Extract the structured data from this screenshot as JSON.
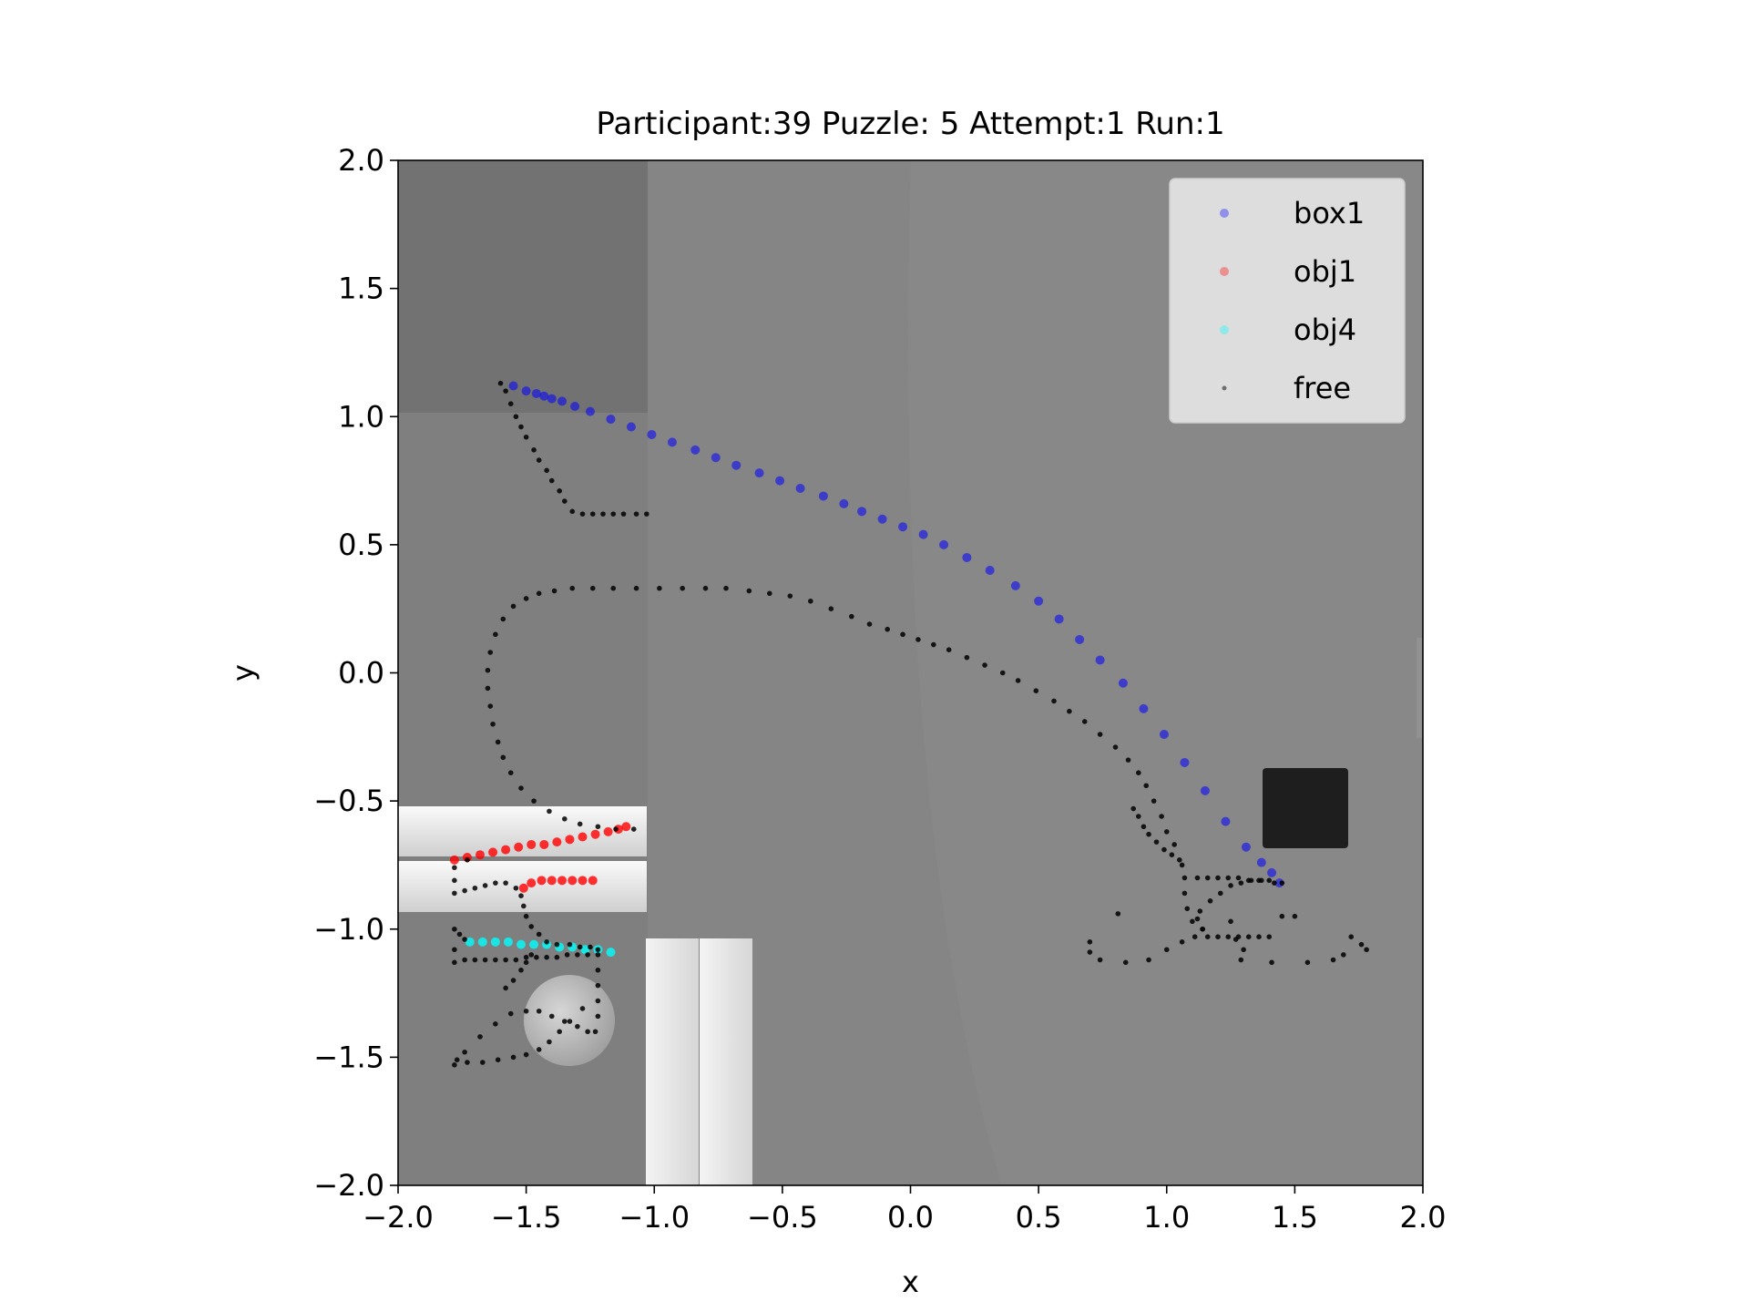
{
  "chart_data": {
    "type": "scatter",
    "title": "Participant:39 Puzzle: 5 Attempt:1 Run:1",
    "xlabel": "x",
    "ylabel": "y",
    "xlim": [
      -2.0,
      2.0
    ],
    "ylim": [
      -2.0,
      2.0
    ],
    "xticks": [
      "−2.0",
      "−1.5",
      "−1.0",
      "−0.5",
      "0.0",
      "0.5",
      "1.0",
      "1.5",
      "2.0"
    ],
    "yticks": [
      "2.0",
      "1.5",
      "1.0",
      "0.5",
      "0.0",
      "−0.5",
      "−1.0",
      "−1.5",
      "−2.0"
    ],
    "xtick_values": [
      -2.0,
      -1.5,
      -1.0,
      -0.5,
      0.0,
      0.5,
      1.0,
      1.5,
      2.0
    ],
    "ytick_values": [
      2.0,
      1.5,
      1.0,
      0.5,
      0.0,
      -0.5,
      -1.0,
      -1.5,
      -2.0
    ],
    "grid": false,
    "legend_position": "top-right",
    "background": "grayscale scene image",
    "series": [
      {
        "name": "box1",
        "color": "#0000ff",
        "points": [
          [
            -1.55,
            1.12
          ],
          [
            -1.5,
            1.1
          ],
          [
            -1.46,
            1.09
          ],
          [
            -1.43,
            1.08
          ],
          [
            -1.4,
            1.07
          ],
          [
            -1.36,
            1.06
          ],
          [
            -1.31,
            1.04
          ],
          [
            -1.25,
            1.02
          ],
          [
            -1.17,
            0.99
          ],
          [
            -1.09,
            0.96
          ],
          [
            -1.01,
            0.93
          ],
          [
            -0.93,
            0.9
          ],
          [
            -0.84,
            0.87
          ],
          [
            -0.76,
            0.84
          ],
          [
            -0.68,
            0.81
          ],
          [
            -0.59,
            0.78
          ],
          [
            -0.51,
            0.75
          ],
          [
            -0.43,
            0.72
          ],
          [
            -0.34,
            0.69
          ],
          [
            -0.26,
            0.66
          ],
          [
            -0.19,
            0.63
          ],
          [
            -0.11,
            0.6
          ],
          [
            -0.03,
            0.57
          ],
          [
            0.05,
            0.54
          ],
          [
            0.13,
            0.5
          ],
          [
            0.22,
            0.45
          ],
          [
            0.31,
            0.4
          ],
          [
            0.41,
            0.34
          ],
          [
            0.5,
            0.28
          ],
          [
            0.58,
            0.21
          ],
          [
            0.66,
            0.13
          ],
          [
            0.74,
            0.05
          ],
          [
            0.83,
            -0.04
          ],
          [
            0.91,
            -0.14
          ],
          [
            0.99,
            -0.24
          ],
          [
            1.07,
            -0.35
          ],
          [
            1.15,
            -0.46
          ],
          [
            1.23,
            -0.58
          ],
          [
            1.31,
            -0.68
          ],
          [
            1.37,
            -0.74
          ],
          [
            1.41,
            -0.78
          ],
          [
            1.44,
            -0.82
          ]
        ]
      },
      {
        "name": "obj1",
        "color": "#ff0000",
        "points": [
          [
            -1.78,
            -0.73
          ],
          [
            -1.73,
            -0.72
          ],
          [
            -1.68,
            -0.71
          ],
          [
            -1.63,
            -0.7
          ],
          [
            -1.58,
            -0.69
          ],
          [
            -1.53,
            -0.68
          ],
          [
            -1.48,
            -0.67
          ],
          [
            -1.43,
            -0.67
          ],
          [
            -1.38,
            -0.66
          ],
          [
            -1.33,
            -0.65
          ],
          [
            -1.28,
            -0.64
          ],
          [
            -1.23,
            -0.63
          ],
          [
            -1.18,
            -0.62
          ],
          [
            -1.14,
            -0.61
          ],
          [
            -1.11,
            -0.6
          ],
          [
            -1.51,
            -0.84
          ],
          [
            -1.48,
            -0.82
          ],
          [
            -1.44,
            -0.81
          ],
          [
            -1.4,
            -0.81
          ],
          [
            -1.36,
            -0.81
          ],
          [
            -1.32,
            -0.81
          ],
          [
            -1.28,
            -0.81
          ],
          [
            -1.24,
            -0.81
          ]
        ]
      },
      {
        "name": "obj4",
        "color": "#00ffff",
        "points": [
          [
            -1.72,
            -1.05
          ],
          [
            -1.67,
            -1.05
          ],
          [
            -1.62,
            -1.05
          ],
          [
            -1.57,
            -1.05
          ],
          [
            -1.52,
            -1.06
          ],
          [
            -1.47,
            -1.06
          ],
          [
            -1.42,
            -1.06
          ],
          [
            -1.37,
            -1.07
          ],
          [
            -1.32,
            -1.07
          ],
          [
            -1.27,
            -1.08
          ],
          [
            -1.22,
            -1.08
          ],
          [
            -1.17,
            -1.09
          ]
        ]
      },
      {
        "name": "free",
        "color": "#000000",
        "points": [
          [
            -1.6,
            1.13
          ],
          [
            -1.58,
            1.1
          ],
          [
            -1.56,
            1.05
          ],
          [
            -1.54,
            1.0
          ],
          [
            -1.52,
            0.96
          ],
          [
            -1.5,
            0.92
          ],
          [
            -1.47,
            0.87
          ],
          [
            -1.45,
            0.83
          ],
          [
            -1.42,
            0.79
          ],
          [
            -1.4,
            0.75
          ],
          [
            -1.37,
            0.71
          ],
          [
            -1.35,
            0.67
          ],
          [
            -1.32,
            0.63
          ],
          [
            -1.28,
            0.62
          ],
          [
            -1.24,
            0.62
          ],
          [
            -1.2,
            0.62
          ],
          [
            -1.16,
            0.62
          ],
          [
            -1.12,
            0.62
          ],
          [
            -1.07,
            0.62
          ],
          [
            -1.03,
            0.62
          ],
          [
            -1.08,
            -0.61
          ],
          [
            -1.15,
            -0.61
          ],
          [
            -1.22,
            -0.6
          ],
          [
            -1.29,
            -0.59
          ],
          [
            -1.35,
            -0.57
          ],
          [
            -1.41,
            -0.54
          ],
          [
            -1.47,
            -0.5
          ],
          [
            -1.52,
            -0.45
          ],
          [
            -1.56,
            -0.39
          ],
          [
            -1.59,
            -0.33
          ],
          [
            -1.61,
            -0.27
          ],
          [
            -1.63,
            -0.2
          ],
          [
            -1.64,
            -0.13
          ],
          [
            -1.65,
            -0.06
          ],
          [
            -1.65,
            0.01
          ],
          [
            -1.64,
            0.08
          ],
          [
            -1.62,
            0.15
          ],
          [
            -1.59,
            0.21
          ],
          [
            -1.55,
            0.26
          ],
          [
            -1.5,
            0.29
          ],
          [
            -1.45,
            0.31
          ],
          [
            -1.39,
            0.32
          ],
          [
            -1.32,
            0.33
          ],
          [
            -1.24,
            0.33
          ],
          [
            -1.16,
            0.33
          ],
          [
            -1.07,
            0.33
          ],
          [
            -0.98,
            0.33
          ],
          [
            -0.89,
            0.33
          ],
          [
            -0.8,
            0.33
          ],
          [
            -0.72,
            0.33
          ],
          [
            -0.63,
            0.32
          ],
          [
            -0.55,
            0.31
          ],
          [
            -0.47,
            0.3
          ],
          [
            -0.39,
            0.28
          ],
          [
            -0.31,
            0.25
          ],
          [
            -0.23,
            0.22
          ],
          [
            -0.16,
            0.19
          ],
          [
            -0.09,
            0.17
          ],
          [
            -0.03,
            0.15
          ],
          [
            0.03,
            0.13
          ],
          [
            0.09,
            0.11
          ],
          [
            0.15,
            0.09
          ],
          [
            0.22,
            0.06
          ],
          [
            0.29,
            0.03
          ],
          [
            0.36,
            0.0
          ],
          [
            0.42,
            -0.03
          ],
          [
            0.49,
            -0.07
          ],
          [
            0.56,
            -0.11
          ],
          [
            0.62,
            -0.15
          ],
          [
            0.68,
            -0.19
          ],
          [
            0.74,
            -0.24
          ],
          [
            0.8,
            -0.29
          ],
          [
            0.85,
            -0.34
          ],
          [
            0.89,
            -0.39
          ],
          [
            0.92,
            -0.44
          ],
          [
            0.95,
            -0.5
          ],
          [
            0.98,
            -0.56
          ],
          [
            1.0,
            -0.62
          ],
          [
            1.03,
            -0.67
          ],
          [
            1.05,
            -0.73
          ],
          [
            0.87,
            -0.53
          ],
          [
            0.89,
            -0.56
          ],
          [
            0.91,
            -0.6
          ],
          [
            0.93,
            -0.63
          ],
          [
            0.96,
            -0.66
          ],
          [
            0.99,
            -0.69
          ],
          [
            1.02,
            -0.71
          ],
          [
            1.06,
            -0.75
          ],
          [
            1.07,
            -0.8
          ],
          [
            1.07,
            -0.86
          ],
          [
            1.08,
            -0.92
          ],
          [
            1.1,
            -0.97
          ],
          [
            1.13,
            -0.93
          ],
          [
            1.17,
            -0.89
          ],
          [
            1.21,
            -0.86
          ],
          [
            1.25,
            -0.83
          ],
          [
            1.29,
            -0.82
          ],
          [
            1.33,
            -0.81
          ],
          [
            1.37,
            -0.81
          ],
          [
            1.42,
            -0.82
          ],
          [
            1.45,
            -0.82
          ],
          [
            1.12,
            -0.8
          ],
          [
            1.16,
            -0.8
          ],
          [
            1.2,
            -0.8
          ],
          [
            1.24,
            -0.8
          ],
          [
            1.28,
            -0.8
          ],
          [
            1.32,
            -0.81
          ],
          [
            1.36,
            -0.81
          ],
          [
            1.4,
            -0.81
          ],
          [
            1.12,
            -0.96
          ],
          [
            1.14,
            -1.0
          ],
          [
            1.16,
            -1.03
          ],
          [
            1.2,
            -1.03
          ],
          [
            1.24,
            -1.03
          ],
          [
            1.28,
            -1.03
          ],
          [
            1.32,
            -1.03
          ],
          [
            1.36,
            -1.03
          ],
          [
            1.4,
            -1.03
          ],
          [
            1.14,
            -1.0
          ],
          [
            1.11,
            -1.03
          ],
          [
            1.06,
            -1.05
          ],
          [
            1.0,
            -1.08
          ],
          [
            0.93,
            -1.12
          ],
          [
            0.84,
            -1.13
          ],
          [
            0.74,
            -1.12
          ],
          [
            0.7,
            -1.09
          ],
          [
            0.7,
            -1.05
          ],
          [
            0.81,
            -0.94
          ],
          [
            1.25,
            -0.97
          ],
          [
            1.27,
            -1.04
          ],
          [
            1.3,
            -1.08
          ],
          [
            1.29,
            -1.12
          ],
          [
            1.41,
            -1.13
          ],
          [
            1.55,
            -1.13
          ],
          [
            1.65,
            -1.12
          ],
          [
            1.69,
            -1.1
          ],
          [
            1.72,
            -1.03
          ],
          [
            1.76,
            -1.06
          ],
          [
            1.78,
            -1.08
          ],
          [
            1.45,
            -0.95
          ],
          [
            1.5,
            -0.95
          ],
          [
            -1.73,
            -0.73
          ],
          [
            -1.78,
            -0.76
          ],
          [
            -1.78,
            -0.81
          ],
          [
            -1.78,
            -0.86
          ],
          [
            -1.74,
            -0.85
          ],
          [
            -1.7,
            -0.84
          ],
          [
            -1.66,
            -0.83
          ],
          [
            -1.62,
            -0.82
          ],
          [
            -1.58,
            -0.82
          ],
          [
            -1.54,
            -0.84
          ],
          [
            -1.52,
            -0.87
          ],
          [
            -1.51,
            -0.91
          ],
          [
            -1.5,
            -0.95
          ],
          [
            -1.48,
            -0.99
          ],
          [
            -1.45,
            -1.02
          ],
          [
            -1.42,
            -1.05
          ],
          [
            -1.38,
            -1.06
          ],
          [
            -1.33,
            -1.06
          ],
          [
            -1.29,
            -1.07
          ],
          [
            -1.25,
            -1.07
          ],
          [
            -1.22,
            -1.08
          ],
          [
            -1.78,
            -1.0
          ],
          [
            -1.76,
            -1.02
          ],
          [
            -1.74,
            -1.04
          ],
          [
            -1.78,
            -1.13
          ],
          [
            -1.78,
            -1.08
          ],
          [
            -1.74,
            -1.12
          ],
          [
            -1.7,
            -1.12
          ],
          [
            -1.66,
            -1.12
          ],
          [
            -1.62,
            -1.12
          ],
          [
            -1.58,
            -1.12
          ],
          [
            -1.54,
            -1.12
          ],
          [
            -1.5,
            -1.11
          ],
          [
            -1.46,
            -1.11
          ],
          [
            -1.42,
            -1.11
          ],
          [
            -1.38,
            -1.11
          ],
          [
            -1.34,
            -1.1
          ],
          [
            -1.3,
            -1.1
          ],
          [
            -1.26,
            -1.1
          ],
          [
            -1.48,
            -1.1
          ],
          [
            -1.5,
            -1.13
          ],
          [
            -1.52,
            -1.16
          ],
          [
            -1.55,
            -1.2
          ],
          [
            -1.58,
            -1.23
          ],
          [
            -1.22,
            -1.1
          ],
          [
            -1.22,
            -1.16
          ],
          [
            -1.22,
            -1.22
          ],
          [
            -1.22,
            -1.28
          ],
          [
            -1.22,
            -1.34
          ],
          [
            -1.23,
            -1.4
          ],
          [
            -1.26,
            -1.4
          ],
          [
            -1.3,
            -1.38
          ],
          [
            -1.35,
            -1.36
          ],
          [
            -1.4,
            -1.34
          ],
          [
            -1.45,
            -1.32
          ],
          [
            -1.5,
            -1.32
          ],
          [
            -1.56,
            -1.33
          ],
          [
            -1.62,
            -1.37
          ],
          [
            -1.68,
            -1.42
          ],
          [
            -1.74,
            -1.48
          ],
          [
            -1.78,
            -1.53
          ],
          [
            -1.77,
            -1.51
          ],
          [
            -1.73,
            -1.52
          ],
          [
            -1.67,
            -1.52
          ],
          [
            -1.61,
            -1.51
          ],
          [
            -1.55,
            -1.5
          ],
          [
            -1.5,
            -1.49
          ],
          [
            -1.45,
            -1.47
          ],
          [
            -1.41,
            -1.44
          ],
          [
            -1.37,
            -1.4
          ],
          [
            -1.33,
            -1.36
          ],
          [
            -1.28,
            -1.31
          ]
        ]
      }
    ]
  }
}
